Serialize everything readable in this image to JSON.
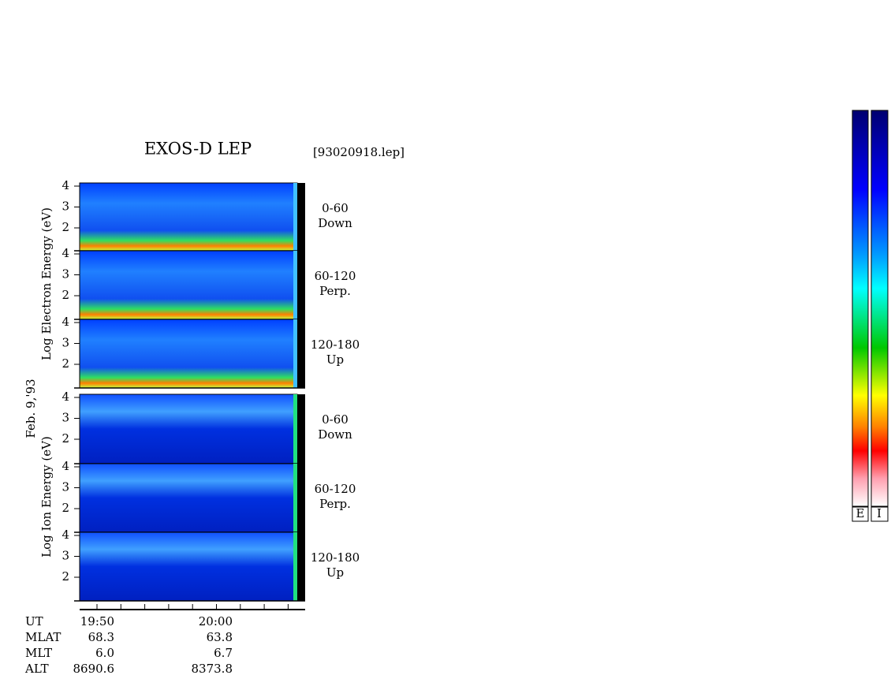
{
  "title": "EXOS-D LEP",
  "file": "[93020918.lep]",
  "date": "Feb. 9,'93",
  "yticks": [
    4,
    3,
    2
  ],
  "electron": {
    "axis_label": "Log  Electron  Energy (eV)",
    "panels": [
      {
        "angle": "0-60",
        "direction": "Down"
      },
      {
        "angle": "60-120",
        "direction": "Perp."
      },
      {
        "angle": "120-180",
        "direction": "Up"
      }
    ]
  },
  "ion": {
    "axis_label": "Log   Ion  Energy (eV)",
    "panels": [
      {
        "angle": "0-60",
        "direction": "Down"
      },
      {
        "angle": "60-120",
        "direction": "Perp."
      },
      {
        "angle": "120-180",
        "direction": "Up"
      }
    ]
  },
  "orbit": {
    "rows": [
      {
        "label": "UT",
        "values": [
          "19:50",
          "20:00"
        ]
      },
      {
        "label": "MLAT",
        "values": [
          "68.3",
          "63.8"
        ]
      },
      {
        "label": "MLT",
        "values": [
          "6.0",
          "6.7"
        ]
      },
      {
        "label": "ALT",
        "values": [
          "8690.6",
          "8373.8"
        ]
      }
    ]
  },
  "colorbar_labels": [
    "E",
    "I"
  ]
}
